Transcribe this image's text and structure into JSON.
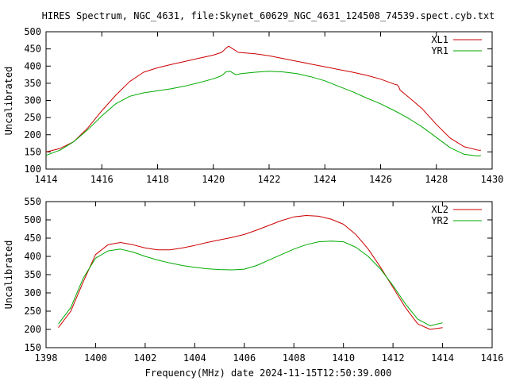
{
  "title": "HIRES Spectrum, NGC_4631, file:Skynet_60629_NGC_4631_124508_74539.spect.cyb.txt",
  "xlabel": "Frequency(MHz) date 2024-11-15T12:50:39.000",
  "colors": {
    "red": "#cc0000",
    "green": "#00aa00",
    "axis": "#000000"
  },
  "chart_data": [
    {
      "type": "line",
      "ylabel": "Uncalibrated",
      "xlim": [
        1414,
        1430
      ],
      "ylim": [
        100,
        500
      ],
      "xticks": [
        1414,
        1416,
        1418,
        1420,
        1422,
        1424,
        1426,
        1428,
        1430
      ],
      "yticks": [
        100,
        150,
        200,
        250,
        300,
        350,
        400,
        450,
        500
      ],
      "legend_position": "top-right",
      "series": [
        {
          "name": "XL1",
          "color": "#cc0000",
          "x": [
            1414.0,
            1414.5,
            1415.0,
            1415.5,
            1416.0,
            1416.5,
            1417.0,
            1417.5,
            1418.0,
            1418.5,
            1419.0,
            1419.5,
            1420.0,
            1420.3,
            1420.45,
            1420.55,
            1420.7,
            1420.9,
            1421.5,
            1422.0,
            1422.5,
            1423.0,
            1423.5,
            1424.0,
            1424.5,
            1425.0,
            1425.5,
            1426.0,
            1426.5,
            1426.6,
            1426.65,
            1426.7,
            1427.0,
            1427.5,
            1428.0,
            1428.5,
            1429.0,
            1429.5,
            1429.6
          ],
          "y": [
            150,
            160,
            180,
            220,
            270,
            315,
            355,
            382,
            395,
            405,
            414,
            423,
            432,
            440,
            452,
            458,
            450,
            440,
            436,
            430,
            422,
            414,
            406,
            398,
            390,
            382,
            373,
            362,
            347,
            345,
            340,
            330,
            310,
            275,
            230,
            190,
            165,
            155,
            155
          ]
        },
        {
          "name": "YR1",
          "color": "#00aa00",
          "x": [
            1414.0,
            1414.5,
            1415.0,
            1415.5,
            1416.0,
            1416.5,
            1417.0,
            1417.5,
            1418.0,
            1418.5,
            1419.0,
            1419.5,
            1420.0,
            1420.3,
            1420.45,
            1420.6,
            1420.8,
            1421.0,
            1421.5,
            1422.0,
            1422.5,
            1423.0,
            1423.5,
            1424.0,
            1424.5,
            1425.0,
            1425.5,
            1426.0,
            1426.5,
            1427.0,
            1427.5,
            1428.0,
            1428.5,
            1429.0,
            1429.5,
            1429.6
          ],
          "y": [
            140,
            155,
            180,
            215,
            255,
            290,
            312,
            322,
            328,
            334,
            342,
            352,
            363,
            372,
            383,
            385,
            375,
            378,
            382,
            385,
            383,
            378,
            369,
            357,
            341,
            325,
            307,
            290,
            270,
            248,
            222,
            192,
            162,
            143,
            138,
            140
          ]
        }
      ]
    },
    {
      "type": "line",
      "ylabel": "Uncalibrated",
      "xlim": [
        1398,
        1416
      ],
      "ylim": [
        150,
        550
      ],
      "xticks": [
        1398,
        1400,
        1402,
        1404,
        1406,
        1408,
        1410,
        1412,
        1414,
        1416
      ],
      "yticks": [
        150,
        200,
        250,
        300,
        350,
        400,
        450,
        500,
        550
      ],
      "legend_position": "top-right",
      "series": [
        {
          "name": "XL2",
          "color": "#cc0000",
          "x": [
            1398.5,
            1399.0,
            1399.5,
            1400.0,
            1400.5,
            1401.0,
            1401.5,
            1402.0,
            1402.5,
            1403.0,
            1403.5,
            1404.0,
            1404.5,
            1405.0,
            1405.5,
            1406.0,
            1406.5,
            1407.0,
            1407.5,
            1408.0,
            1408.5,
            1409.0,
            1409.5,
            1410.0,
            1410.5,
            1411.0,
            1411.5,
            1412.0,
            1412.5,
            1413.0,
            1413.5,
            1414.0
          ],
          "y": [
            205,
            250,
            330,
            405,
            432,
            438,
            432,
            423,
            418,
            418,
            423,
            430,
            438,
            445,
            452,
            460,
            472,
            485,
            498,
            508,
            512,
            510,
            502,
            488,
            460,
            420,
            370,
            315,
            260,
            215,
            200,
            205
          ]
        },
        {
          "name": "YR2",
          "color": "#00aa00",
          "x": [
            1398.5,
            1399.0,
            1399.5,
            1400.0,
            1400.5,
            1401.0,
            1401.5,
            1402.0,
            1402.5,
            1403.0,
            1403.5,
            1404.0,
            1404.5,
            1405.0,
            1405.5,
            1406.0,
            1406.5,
            1407.0,
            1407.5,
            1408.0,
            1408.5,
            1409.0,
            1409.5,
            1410.0,
            1410.5,
            1411.0,
            1411.5,
            1412.0,
            1412.5,
            1413.0,
            1413.5,
            1414.0
          ],
          "y": [
            215,
            260,
            340,
            395,
            415,
            420,
            412,
            400,
            390,
            382,
            375,
            370,
            366,
            364,
            363,
            365,
            375,
            390,
            405,
            420,
            432,
            440,
            442,
            440,
            425,
            400,
            365,
            320,
            270,
            228,
            210,
            218
          ]
        }
      ]
    }
  ]
}
